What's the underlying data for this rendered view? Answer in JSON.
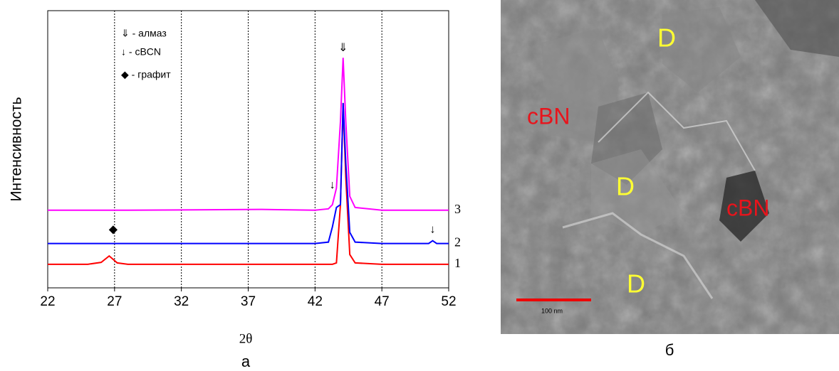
{
  "chart_data": {
    "type": "line",
    "xlabel": "2θ",
    "ylabel": "Интенсивность",
    "caption": "а",
    "x": [
      22,
      25,
      26,
      26.6,
      27.2,
      28,
      38,
      42,
      43,
      43.3,
      43.6,
      43.9,
      44.1,
      44.3,
      44.6,
      45,
      47,
      50.5,
      50.8,
      51.1,
      52
    ],
    "series": [
      {
        "name": "1",
        "color": "#ff0000",
        "values": [
          8.5,
          8.5,
          9.2,
          11.5,
          9.0,
          8.5,
          8.5,
          8.5,
          8.5,
          8.5,
          9,
          30,
          66.7,
          40,
          12,
          9,
          8.5,
          8.5,
          8.5,
          8.5,
          8.5
        ]
      },
      {
        "name": "2",
        "color": "#0000ff",
        "values": [
          16,
          16,
          16,
          16,
          16,
          16,
          16,
          16,
          16.5,
          22,
          29,
          30,
          66.7,
          45,
          20,
          16.5,
          16,
          16,
          17,
          16,
          16
        ]
      },
      {
        "name": "3",
        "color": "#ff00ff",
        "values": [
          28,
          28,
          28,
          28,
          28,
          28,
          28.3,
          28,
          28.5,
          30,
          36,
          60,
          83,
          60,
          33,
          29,
          28,
          28,
          28,
          28,
          28
        ]
      }
    ],
    "xlim": [
      22,
      52
    ],
    "xticks": [
      22,
      27,
      32,
      37,
      42,
      47,
      52
    ],
    "ylim": [
      0,
      100
    ],
    "grid": true,
    "legend": [
      "⇓ - алмаз",
      "↓ - cBCN",
      "◆ - графит"
    ],
    "annotations": [
      {
        "text": "⇓",
        "x": 44.1,
        "y": 86.5
      },
      {
        "text": "↓",
        "x": 43.3,
        "y": 37
      },
      {
        "text": "↓",
        "x": 50.8,
        "y": 21
      },
      {
        "text": "◆",
        "x": 26.9,
        "y": 21
      }
    ]
  },
  "image": {
    "caption": "б",
    "scale_bar": "100 nm",
    "labels": [
      "D",
      "cBN",
      "D",
      "cBN",
      "D"
    ]
  }
}
